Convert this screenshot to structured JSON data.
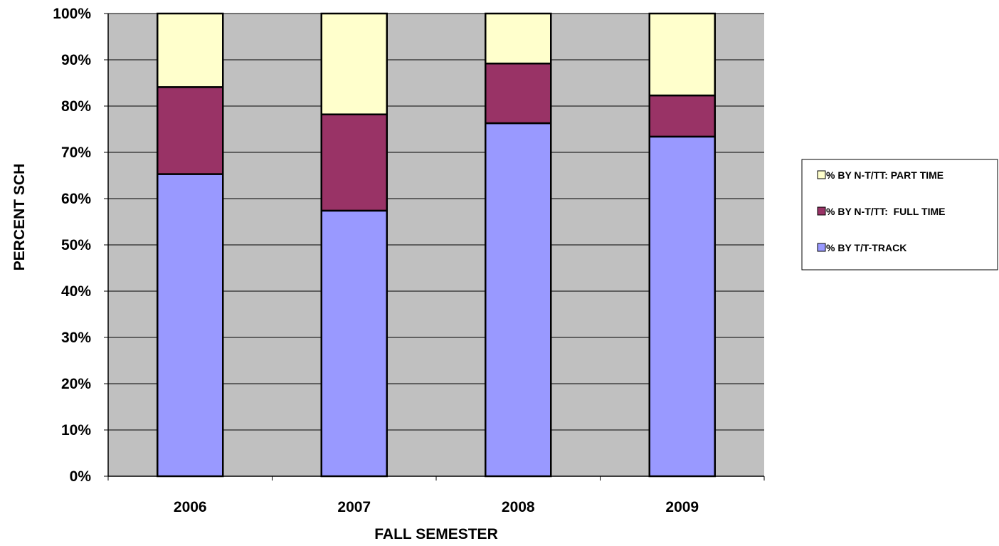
{
  "chart_data": {
    "type": "bar",
    "stacked": true,
    "title": "",
    "xlabel": "FALL SEMESTER",
    "ylabel": "PERCENT SCH",
    "ylim": [
      0,
      100
    ],
    "yticks": [
      "0%",
      "10%",
      "20%",
      "30%",
      "40%",
      "50%",
      "60%",
      "70%",
      "80%",
      "90%",
      "100%"
    ],
    "categories": [
      "2006",
      "2007",
      "2008",
      "2009"
    ],
    "series": [
      {
        "name": "% BY T/T-TRACK",
        "color": "#9999ff",
        "values": [
          65.3,
          57.4,
          76.3,
          73.4
        ]
      },
      {
        "name": "% BY N-T/TT:  FULL TIME",
        "color": "#993366",
        "values": [
          18.8,
          20.8,
          12.9,
          8.9
        ]
      },
      {
        "name": "% BY N-T/TT: PART TIME",
        "color": "#ffffcc",
        "values": [
          15.9,
          21.8,
          10.8,
          17.7
        ]
      }
    ],
    "legend_order": [
      2,
      1,
      0
    ],
    "legend_position": "right",
    "plot_background": "#c0c0c0",
    "grid": true
  }
}
